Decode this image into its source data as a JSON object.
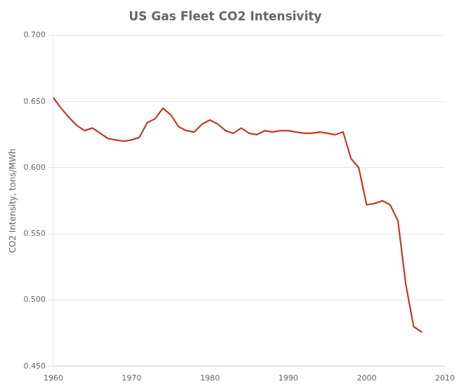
{
  "chart_data": {
    "type": "line",
    "title": "US Gas Fleet CO2 Intensivity",
    "ylabel": "CO2 Intensity, tons/MWh",
    "color": "#c0392b",
    "grid": "y",
    "x": [
      1960,
      1961,
      1962,
      1963,
      1964,
      1965,
      1966,
      1967,
      1968,
      1969,
      1970,
      1971,
      1972,
      1973,
      1974,
      1975,
      1976,
      1977,
      1978,
      1979,
      1980,
      1981,
      1982,
      1983,
      1984,
      1985,
      1986,
      1987,
      1988,
      1989,
      1990,
      1991,
      1992,
      1993,
      1994,
      1995,
      1996,
      1997,
      1998,
      1999,
      2000,
      2001,
      2002,
      2003,
      2004,
      2005,
      2006,
      2007
    ],
    "values": [
      0.653,
      0.645,
      0.638,
      0.632,
      0.628,
      0.63,
      0.626,
      0.622,
      0.621,
      0.62,
      0.621,
      0.623,
      0.634,
      0.637,
      0.645,
      0.64,
      0.631,
      0.628,
      0.627,
      0.633,
      0.636,
      0.633,
      0.628,
      0.626,
      0.63,
      0.626,
      0.625,
      0.628,
      0.627,
      0.628,
      0.628,
      0.627,
      0.626,
      0.626,
      0.627,
      0.626,
      0.625,
      0.627,
      0.607,
      0.6,
      0.572,
      0.573,
      0.575,
      0.572,
      0.56,
      0.512,
      0.48,
      0.476
    ],
    "xlim": [
      1960,
      2010
    ],
    "xticks": [
      1960,
      1970,
      1980,
      1990,
      2000,
      2010
    ],
    "ylim": [
      0.45,
      0.7
    ],
    "yticks": [
      {
        "value": 0.45,
        "label": "0.450"
      },
      {
        "value": 0.5,
        "label": "0.500"
      },
      {
        "value": 0.55,
        "label": "0.550"
      },
      {
        "value": 0.6,
        "label": "0.600"
      },
      {
        "value": 0.65,
        "label": "0.650"
      },
      {
        "value": 0.7,
        "label": "0.700"
      }
    ]
  }
}
